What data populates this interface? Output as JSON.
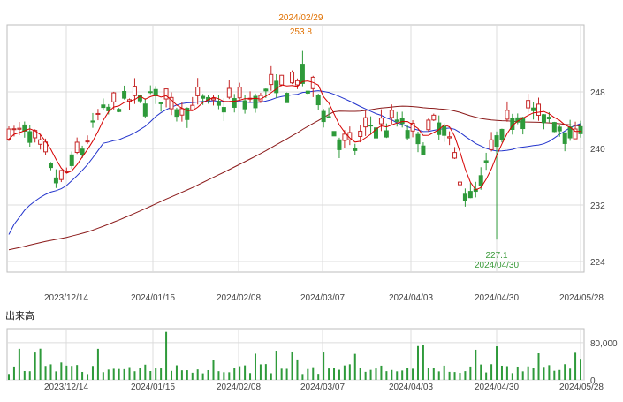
{
  "chart_data": [
    {
      "type": "candlestick",
      "panel": "price",
      "x": [
        "2023/12/14",
        "2024/01/15",
        "2024/02/08",
        "2024/03/07",
        "2024/04/03",
        "2024/04/30",
        "2024/05/28"
      ],
      "y_ticks": [
        248,
        240,
        232,
        224
      ],
      "y_range": [
        222.5,
        257.5
      ],
      "grid": true,
      "up_color": "#2e9a3a",
      "down_color": "#c62828",
      "ma_colors": {
        "short": "#d60000",
        "medium": "#2233cc",
        "long": "#8b1a1a"
      },
      "annotations": {
        "high": {
          "date": "2024/02/29",
          "value": 253.8,
          "color": "#e07000"
        },
        "low": {
          "date": "2024/04/30",
          "value": 227.1,
          "color": "#3a9a3a"
        }
      }
    },
    {
      "type": "bar",
      "panel": "volume",
      "title": "出来高",
      "y_ticks": [
        "80,000",
        "0"
      ],
      "y_range": [
        0,
        110000
      ],
      "bar_color": "#2e9a3a"
    }
  ]
}
